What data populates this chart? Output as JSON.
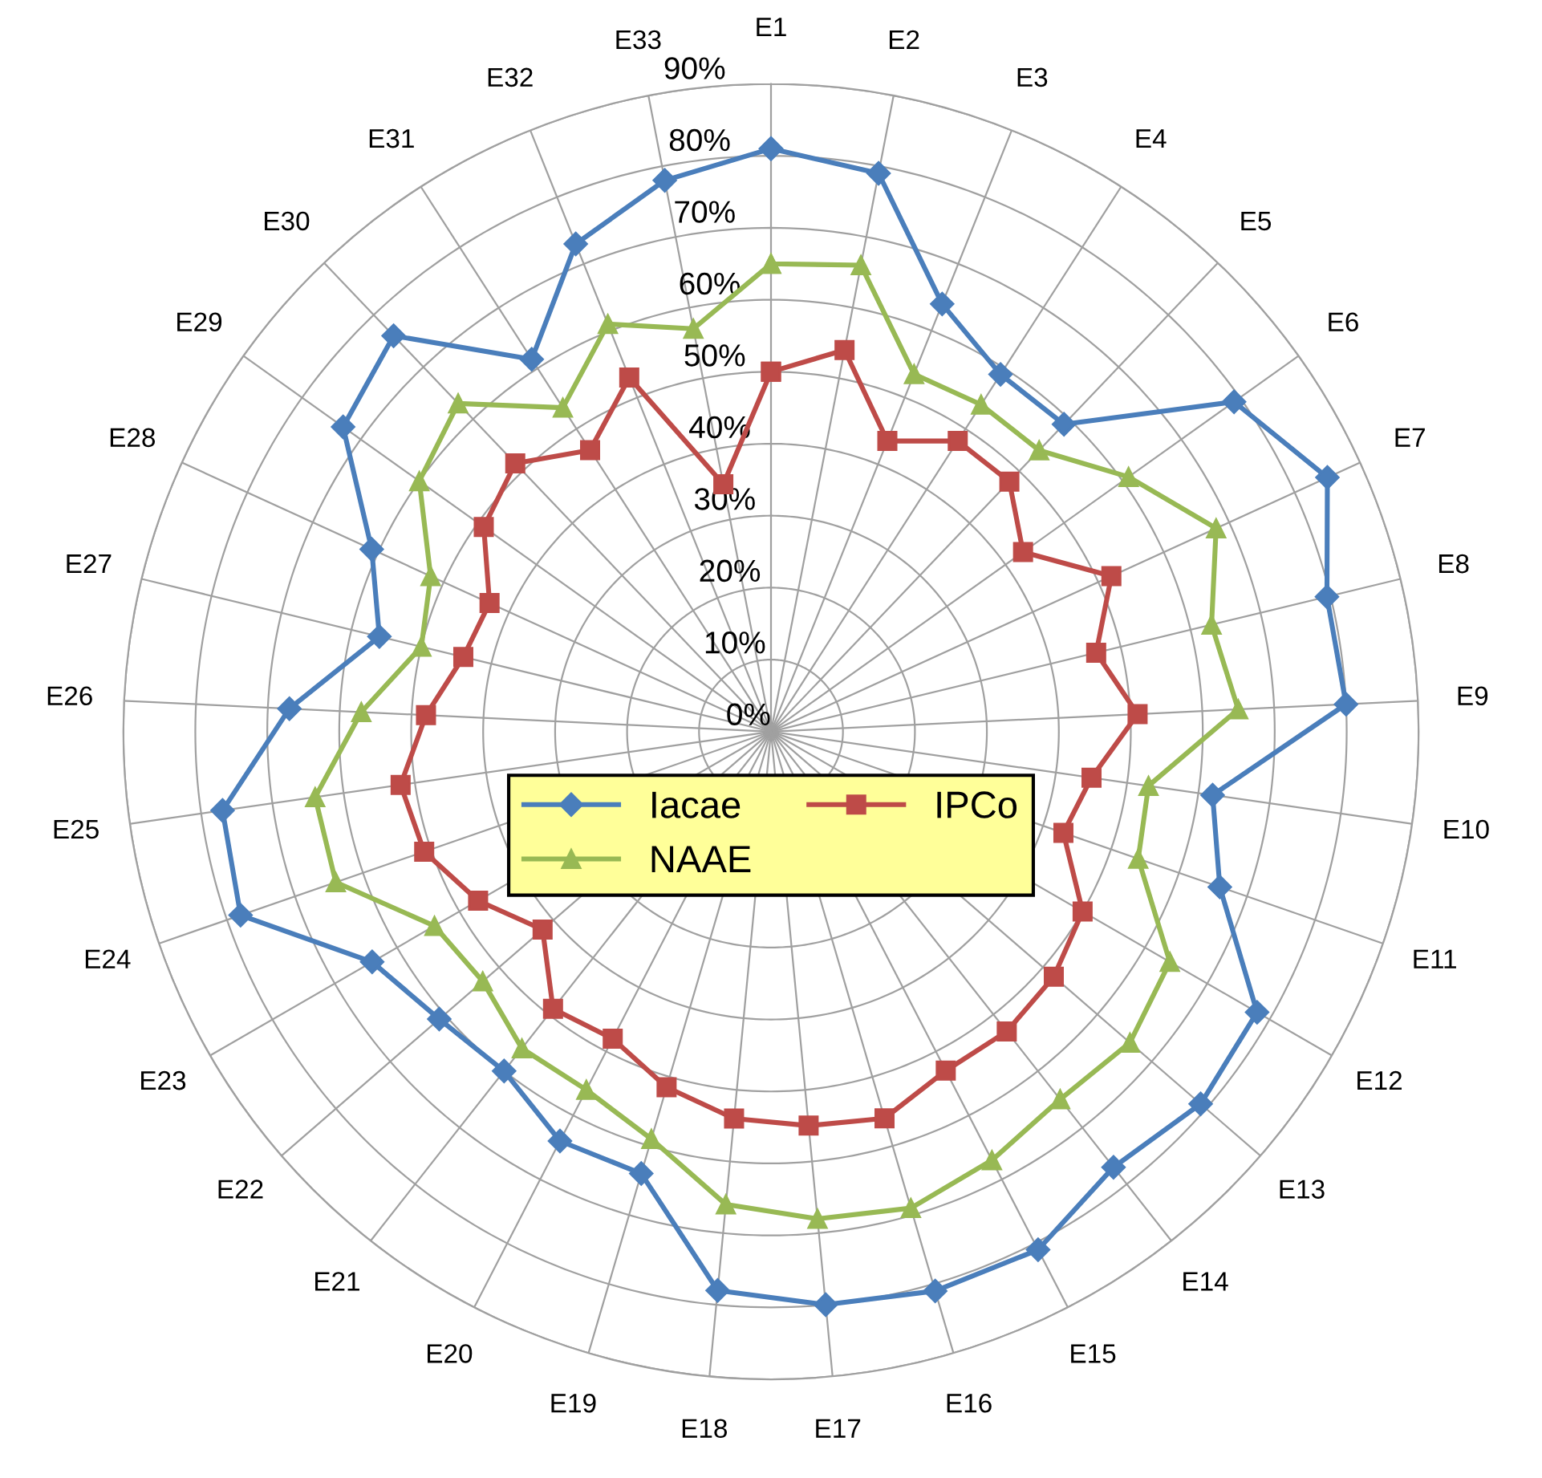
{
  "chart_data": {
    "type": "radar",
    "categories": [
      "E1",
      "E2",
      "E3",
      "E4",
      "E5",
      "E6",
      "E7",
      "E8",
      "E9",
      "E10",
      "E11",
      "E12",
      "E13",
      "E14",
      "E15",
      "E16",
      "E17",
      "E18",
      "E19",
      "E20",
      "E21",
      "E22",
      "E23",
      "E24",
      "E25",
      "E26",
      "E27",
      "E28",
      "E29",
      "E30",
      "E31",
      "E32",
      "E33"
    ],
    "series": [
      {
        "name": "Iacae",
        "color": "#4a7ebb",
        "marker": "diamond",
        "values": [
          81,
          79,
          64,
          59,
          59,
          79,
          85,
          79.5,
          80,
          62,
          66,
          78,
          79,
          77,
          81,
          81,
          80,
          78,
          64,
          64,
          60,
          61,
          64,
          78,
          77,
          67,
          56,
          61,
          73,
          76,
          61.5,
          73,
          78
        ]
      },
      {
        "name": "IPCo",
        "color": "#be4b48",
        "marker": "square",
        "values": [
          50,
          54,
          43.5,
          48,
          48,
          43,
          52,
          46.5,
          51,
          45,
          43,
          50,
          52,
          53,
          53,
          56,
          55,
          54,
          51.5,
          48,
          49,
          42,
          47,
          51,
          52,
          48,
          44,
          43,
          49,
          51.5,
          46.5,
          53,
          35
        ]
      },
      {
        "name": "NAAE",
        "color": "#98b954",
        "marker": "triangle",
        "values": [
          65,
          66,
          53.5,
          54,
          54,
          61,
          68,
          63,
          65,
          53,
          54,
          64,
          66,
          65,
          67,
          69,
          68,
          66,
          59,
          56,
          56,
          53,
          54,
          64,
          64,
          57,
          50,
          52,
          60,
          63,
          53.5,
          61,
          57
        ]
      }
    ],
    "ylim": [
      0,
      90
    ],
    "yticks": [
      {
        "value": 0,
        "label": "0%"
      },
      {
        "value": 10,
        "label": "10%"
      },
      {
        "value": 20,
        "label": "20%"
      },
      {
        "value": 30,
        "label": "30%"
      },
      {
        "value": 40,
        "label": "40%"
      },
      {
        "value": 50,
        "label": "50%"
      },
      {
        "value": 60,
        "label": "60%"
      },
      {
        "value": 70,
        "label": "70%"
      },
      {
        "value": 80,
        "label": "80%"
      },
      {
        "value": 90,
        "label": "90%"
      }
    ],
    "grid": true,
    "legend": "center"
  }
}
